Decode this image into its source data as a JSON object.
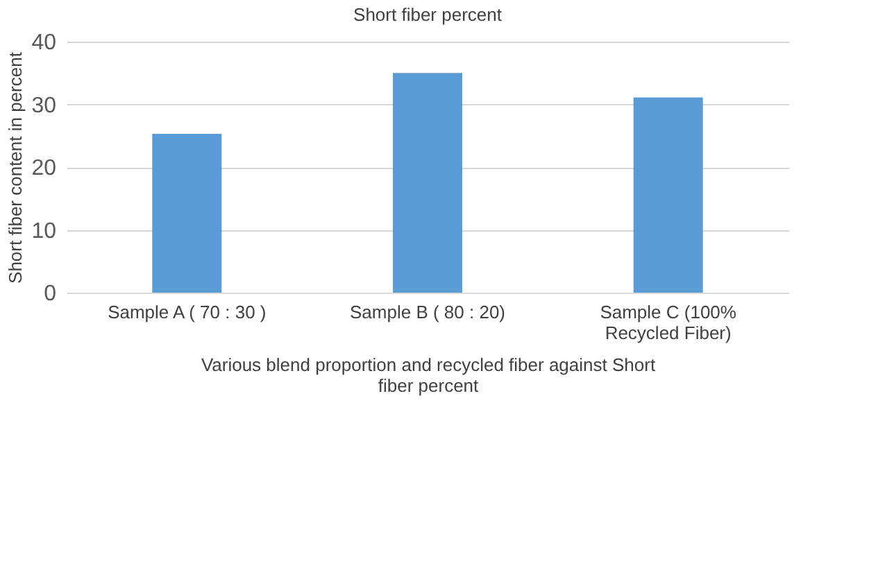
{
  "chart_data": {
    "type": "bar",
    "title": "Short fiber percent",
    "xlabel": "Various blend proportion and recycled fiber against Short fiber percent",
    "ylabel": "Short fiber content in percent",
    "categories": [
      "Sample A ( 70 : 30 )",
      "Sample B ( 80 : 20)",
      "Sample C (100% Recycled Fiber)"
    ],
    "values": [
      25.3,
      35.0,
      31.1
    ],
    "color": "#5b9bd5",
    "ylim": [
      0,
      40
    ],
    "yticks": [
      0,
      10,
      20,
      30,
      40
    ],
    "grid": "y"
  }
}
